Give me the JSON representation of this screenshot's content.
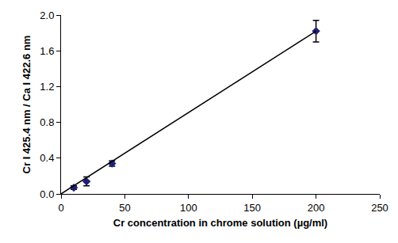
{
  "chart_data": {
    "type": "scatter",
    "x_label": "Cr concentration in chrome solution (µg/ml)",
    "y_label": "Cr I 425.4 nm / Ca I 422.6 nm",
    "series": [
      {
        "type": "scatter",
        "marker": "diamond",
        "color": "#1f1f7a",
        "x": [
          10,
          20,
          40,
          200
        ],
        "values": [
          0.07,
          0.14,
          0.34,
          1.82
        ],
        "error": [
          0.02,
          0.05,
          0.03,
          0.12
        ]
      },
      {
        "type": "line",
        "line_style": "solid",
        "color": "#000000",
        "x": [
          0,
          200
        ],
        "values": [
          0,
          1.82
        ]
      }
    ],
    "xlim": [
      0,
      250
    ],
    "xticks": [
      0,
      50,
      100,
      150,
      200,
      250
    ],
    "ylim": [
      0,
      2
    ],
    "yticks": [
      {
        "value": 0,
        "label": "0.0"
      },
      0.4,
      0.8,
      1.2,
      1.6,
      {
        "value": 2,
        "label": "2.0"
      }
    ],
    "grid": false
  }
}
